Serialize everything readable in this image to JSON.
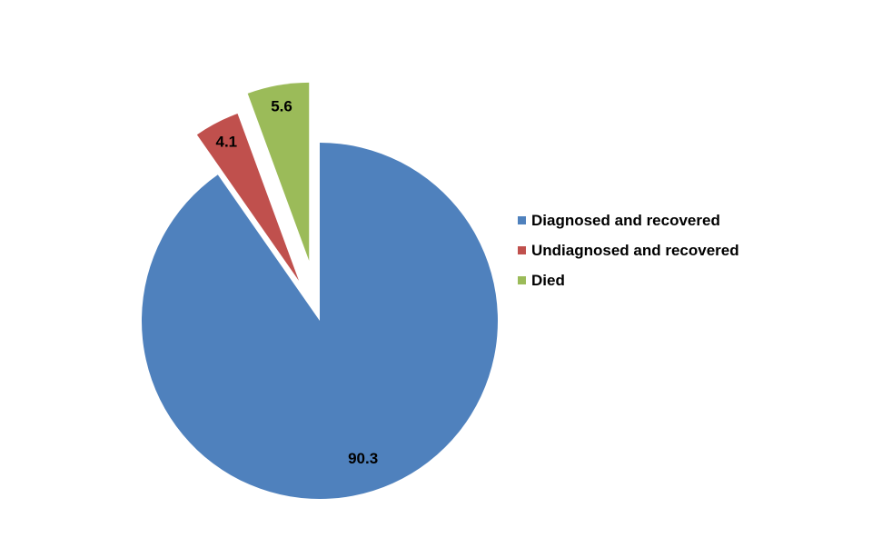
{
  "chart_data": {
    "type": "pie",
    "title": "",
    "slices": [
      {
        "name": "Diagnosed and recovered",
        "value": 90.3,
        "label": "90.3",
        "color": "#4F81BD",
        "exploded": false
      },
      {
        "name": "Undiagnosed and recovered",
        "value": 4.1,
        "label": "4.1",
        "color": "#C0504D",
        "exploded": true
      },
      {
        "name": "Died",
        "value": 5.6,
        "label": "5.6",
        "color": "#9BBB59",
        "exploded": true
      }
    ],
    "legend_position": "right",
    "legend": [
      "Diagnosed and recovered",
      "Undiagnosed and recovered",
      "Died"
    ]
  }
}
